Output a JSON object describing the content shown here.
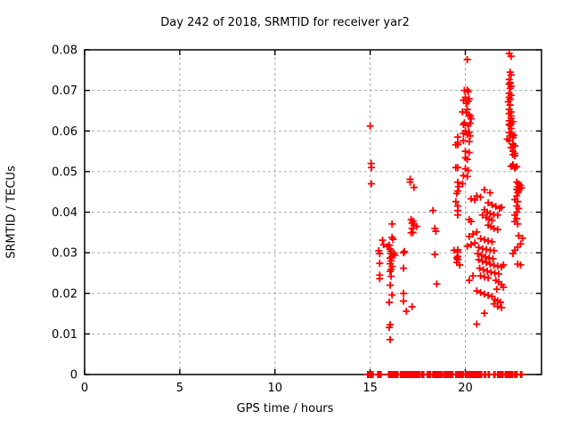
{
  "chart_data": {
    "type": "scatter",
    "title": "Day 242 of 2018, SRMTID for receiver yar2",
    "xlabel": "GPS time / hours",
    "ylabel": "SRMTID / TECUs",
    "xlim": [
      0,
      24
    ],
    "ylim": [
      0,
      0.08
    ],
    "x_ticks": [
      0,
      5,
      10,
      15,
      20
    ],
    "x_tick_labels": [
      "0",
      "5",
      "10",
      "15",
      "20"
    ],
    "y_ticks": [
      0,
      0.01,
      0.02,
      0.03,
      0.04,
      0.05,
      0.06,
      0.07,
      0.08
    ],
    "y_tick_labels": [
      "0",
      "0.01",
      "0.02",
      "0.03",
      "0.04",
      "0.05",
      "0.06",
      "0.07",
      "0.08"
    ],
    "grid": true,
    "legend": "none",
    "marker": "plus",
    "marker_color": "#ff0000",
    "grid_color": "#a8a8a8",
    "frame_color": "#000000",
    "points": [
      [
        15.0,
        0.0612
      ],
      [
        15.05,
        0.052
      ],
      [
        15.07,
        0.051
      ],
      [
        15.06,
        0.047
      ],
      [
        15.45,
        0.0305
      ],
      [
        15.5,
        0.0298
      ],
      [
        15.65,
        0.0331
      ],
      [
        15.7,
        0.032
      ],
      [
        15.9,
        0.0315
      ],
      [
        15.5,
        0.0274
      ],
      [
        15.5,
        0.0245
      ],
      [
        15.5,
        0.0236
      ],
      [
        16.15,
        0.0371
      ],
      [
        16.15,
        0.0338
      ],
      [
        16.2,
        0.0333
      ],
      [
        16.0,
        0.0319
      ],
      [
        16.05,
        0.0309
      ],
      [
        16.1,
        0.0304
      ],
      [
        16.25,
        0.0299
      ],
      [
        16.1,
        0.0298
      ],
      [
        16.15,
        0.0291
      ],
      [
        16.3,
        0.0294
      ],
      [
        16.05,
        0.0287
      ],
      [
        16.1,
        0.028
      ],
      [
        16.05,
        0.0273
      ],
      [
        16.15,
        0.0266
      ],
      [
        16.1,
        0.0259
      ],
      [
        16.05,
        0.0254
      ],
      [
        16.1,
        0.0242
      ],
      [
        16.05,
        0.022
      ],
      [
        16.15,
        0.0196
      ],
      [
        16.0,
        0.0178
      ],
      [
        16.05,
        0.0123
      ],
      [
        16.0,
        0.0116
      ],
      [
        16.05,
        0.0086
      ],
      [
        16.75,
        0.03
      ],
      [
        16.8,
        0.0303
      ],
      [
        16.75,
        0.0262
      ],
      [
        16.75,
        0.02
      ],
      [
        16.75,
        0.0181
      ],
      [
        16.9,
        0.0156
      ],
      [
        17.2,
        0.0167
      ],
      [
        17.1,
        0.0481
      ],
      [
        17.1,
        0.0474
      ],
      [
        17.3,
        0.0461
      ],
      [
        17.15,
        0.0382
      ],
      [
        17.25,
        0.0378
      ],
      [
        17.2,
        0.0373
      ],
      [
        17.3,
        0.0368
      ],
      [
        17.2,
        0.036
      ],
      [
        17.25,
        0.035
      ],
      [
        17.15,
        0.0349
      ],
      [
        17.45,
        0.0365
      ],
      [
        18.3,
        0.0404
      ],
      [
        18.4,
        0.036
      ],
      [
        18.45,
        0.0353
      ],
      [
        18.4,
        0.0296
      ],
      [
        18.5,
        0.0223
      ],
      [
        19.6,
        0.0585
      ],
      [
        19.6,
        0.0566
      ],
      [
        19.5,
        0.0566
      ],
      [
        19.6,
        0.051
      ],
      [
        19.5,
        0.051
      ],
      [
        19.6,
        0.0474
      ],
      [
        19.65,
        0.0463
      ],
      [
        19.6,
        0.0452
      ],
      [
        19.85,
        0.047
      ],
      [
        19.55,
        0.0446
      ],
      [
        19.6,
        0.0415
      ],
      [
        19.5,
        0.0426
      ],
      [
        19.6,
        0.0404
      ],
      [
        19.6,
        0.0393
      ],
      [
        19.4,
        0.0306
      ],
      [
        19.6,
        0.0307
      ],
      [
        19.6,
        0.0302
      ],
      [
        19.6,
        0.0291
      ],
      [
        19.55,
        0.0287
      ],
      [
        19.7,
        0.027
      ],
      [
        19.55,
        0.0276
      ],
      [
        19.6,
        0.0283
      ],
      [
        20.1,
        0.0776
      ],
      [
        20.1,
        0.0701
      ],
      [
        19.95,
        0.07
      ],
      [
        20.15,
        0.0697
      ],
      [
        20.0,
        0.0683
      ],
      [
        20.2,
        0.0679
      ],
      [
        20.05,
        0.0668
      ],
      [
        19.9,
        0.0676
      ],
      [
        20.15,
        0.0673
      ],
      [
        20.1,
        0.0653
      ],
      [
        20.05,
        0.0645
      ],
      [
        20.2,
        0.064
      ],
      [
        20.3,
        0.063
      ],
      [
        19.85,
        0.0647
      ],
      [
        20.25,
        0.0636
      ],
      [
        19.95,
        0.062
      ],
      [
        20.25,
        0.0619
      ],
      [
        19.9,
        0.0616
      ],
      [
        20.15,
        0.0613
      ],
      [
        20.0,
        0.06
      ],
      [
        20.2,
        0.0597
      ],
      [
        19.9,
        0.0594
      ],
      [
        20.1,
        0.0591
      ],
      [
        20.25,
        0.0588
      ],
      [
        19.6,
        0.0571
      ],
      [
        19.9,
        0.0576
      ],
      [
        20.2,
        0.0574
      ],
      [
        20.0,
        0.055
      ],
      [
        20.2,
        0.0547
      ],
      [
        20.0,
        0.0534
      ],
      [
        20.1,
        0.053
      ],
      [
        20.0,
        0.0507
      ],
      [
        20.15,
        0.0503
      ],
      [
        19.9,
        0.049
      ],
      [
        20.1,
        0.0488
      ],
      [
        20.3,
        0.0433
      ],
      [
        20.5,
        0.043
      ],
      [
        20.6,
        0.044
      ],
      [
        20.8,
        0.0437
      ],
      [
        20.2,
        0.0382
      ],
      [
        20.3,
        0.0377
      ],
      [
        20.2,
        0.034
      ],
      [
        20.4,
        0.0346
      ],
      [
        20.6,
        0.0351
      ],
      [
        20.1,
        0.0316
      ],
      [
        20.3,
        0.032
      ],
      [
        20.5,
        0.0324
      ],
      [
        20.4,
        0.0243
      ],
      [
        20.2,
        0.0232
      ],
      [
        20.6,
        0.0124
      ],
      [
        21.0,
        0.0455
      ],
      [
        21.3,
        0.0448
      ],
      [
        21.2,
        0.0423
      ],
      [
        21.4,
        0.0418
      ],
      [
        21.6,
        0.0414
      ],
      [
        21.8,
        0.041
      ],
      [
        21.9,
        0.0412
      ],
      [
        21.0,
        0.0406
      ],
      [
        21.15,
        0.04
      ],
      [
        21.3,
        0.0397
      ],
      [
        21.5,
        0.0394
      ],
      [
        21.7,
        0.0393
      ],
      [
        20.9,
        0.0393
      ],
      [
        21.1,
        0.0387
      ],
      [
        21.25,
        0.0383
      ],
      [
        21.4,
        0.038
      ],
      [
        21.2,
        0.0368
      ],
      [
        21.35,
        0.0364
      ],
      [
        21.5,
        0.036
      ],
      [
        21.7,
        0.0357
      ],
      [
        20.8,
        0.0335
      ],
      [
        21.0,
        0.0332
      ],
      [
        21.2,
        0.0329
      ],
      [
        21.4,
        0.0327
      ],
      [
        20.7,
        0.0313
      ],
      [
        20.9,
        0.031
      ],
      [
        21.1,
        0.0308
      ],
      [
        21.3,
        0.0306
      ],
      [
        21.5,
        0.0305
      ],
      [
        20.65,
        0.0298
      ],
      [
        20.85,
        0.0294
      ],
      [
        21.05,
        0.029
      ],
      [
        21.25,
        0.0287
      ],
      [
        21.45,
        0.0285
      ],
      [
        20.7,
        0.0283
      ],
      [
        20.9,
        0.0279
      ],
      [
        21.1,
        0.0276
      ],
      [
        21.3,
        0.0272
      ],
      [
        21.5,
        0.0269
      ],
      [
        21.7,
        0.0267
      ],
      [
        21.9,
        0.0265
      ],
      [
        22.0,
        0.027
      ],
      [
        20.75,
        0.0262
      ],
      [
        20.95,
        0.0258
      ],
      [
        21.15,
        0.0255
      ],
      [
        21.35,
        0.0252
      ],
      [
        21.55,
        0.025
      ],
      [
        21.75,
        0.0248
      ],
      [
        20.8,
        0.0243
      ],
      [
        21.0,
        0.024
      ],
      [
        21.2,
        0.0238
      ],
      [
        21.6,
        0.0232
      ],
      [
        21.75,
        0.0228
      ],
      [
        21.9,
        0.0222
      ],
      [
        22.0,
        0.0215
      ],
      [
        21.65,
        0.021
      ],
      [
        20.6,
        0.0206
      ],
      [
        20.8,
        0.0202
      ],
      [
        21.0,
        0.0198
      ],
      [
        21.2,
        0.0195
      ],
      [
        21.4,
        0.0192
      ],
      [
        21.55,
        0.0185
      ],
      [
        21.7,
        0.0181
      ],
      [
        21.85,
        0.0178
      ],
      [
        21.5,
        0.0174
      ],
      [
        21.7,
        0.0168
      ],
      [
        21.9,
        0.0165
      ],
      [
        21.0,
        0.0151
      ],
      [
        22.3,
        0.0791
      ],
      [
        22.4,
        0.0784
      ],
      [
        22.35,
        0.0745
      ],
      [
        22.4,
        0.0738
      ],
      [
        22.3,
        0.0727
      ],
      [
        22.35,
        0.0719
      ],
      [
        22.3,
        0.0715
      ],
      [
        22.4,
        0.071
      ],
      [
        22.35,
        0.0705
      ],
      [
        22.3,
        0.0693
      ],
      [
        22.4,
        0.0688
      ],
      [
        22.3,
        0.0683
      ],
      [
        22.35,
        0.0678
      ],
      [
        22.25,
        0.0672
      ],
      [
        22.35,
        0.0664
      ],
      [
        22.3,
        0.0653
      ],
      [
        22.4,
        0.0647
      ],
      [
        22.3,
        0.0643
      ],
      [
        22.4,
        0.0637
      ],
      [
        22.4,
        0.0631
      ],
      [
        22.5,
        0.0623
      ],
      [
        22.3,
        0.0625
      ],
      [
        22.4,
        0.0618
      ],
      [
        22.35,
        0.0613
      ],
      [
        22.3,
        0.0616
      ],
      [
        22.4,
        0.0606
      ],
      [
        22.3,
        0.0596
      ],
      [
        22.45,
        0.0592
      ],
      [
        22.55,
        0.0589
      ],
      [
        22.35,
        0.0588
      ],
      [
        22.5,
        0.0584
      ],
      [
        22.2,
        0.058
      ],
      [
        22.3,
        0.0576
      ],
      [
        22.5,
        0.0568
      ],
      [
        22.6,
        0.0563
      ],
      [
        22.5,
        0.0566
      ],
      [
        22.4,
        0.0559
      ],
      [
        22.5,
        0.055
      ],
      [
        22.6,
        0.0545
      ],
      [
        22.5,
        0.0542
      ],
      [
        22.6,
        0.0539
      ],
      [
        22.5,
        0.0517
      ],
      [
        22.5,
        0.0514
      ],
      [
        22.7,
        0.0512
      ],
      [
        22.6,
        0.0509
      ],
      [
        22.4,
        0.0513
      ],
      [
        22.6,
        0.051
      ],
      [
        22.7,
        0.0474
      ],
      [
        22.8,
        0.047
      ],
      [
        22.9,
        0.0466
      ],
      [
        22.75,
        0.0462
      ],
      [
        22.85,
        0.0458
      ],
      [
        22.7,
        0.0456
      ],
      [
        22.95,
        0.046
      ],
      [
        22.8,
        0.0452
      ],
      [
        22.75,
        0.0448
      ],
      [
        22.7,
        0.044
      ],
      [
        22.6,
        0.0431
      ],
      [
        22.75,
        0.0426
      ],
      [
        22.7,
        0.0415
      ],
      [
        22.8,
        0.0409
      ],
      [
        22.7,
        0.04
      ],
      [
        22.6,
        0.0393
      ],
      [
        22.7,
        0.0384
      ],
      [
        22.6,
        0.0377
      ],
      [
        22.75,
        0.0371
      ],
      [
        22.8,
        0.0342
      ],
      [
        23.0,
        0.0336
      ],
      [
        22.9,
        0.0322
      ],
      [
        22.75,
        0.0314
      ],
      [
        22.6,
        0.0306
      ],
      [
        22.5,
        0.0298
      ],
      [
        22.75,
        0.0272
      ],
      [
        22.9,
        0.027
      ]
    ],
    "baseline_value": 0,
    "baseline_segments": [
      [
        14.87,
        15.19
      ],
      [
        15.4,
        15.6
      ],
      [
        15.97,
        16.36
      ],
      [
        16.4,
        16.5
      ],
      [
        16.6,
        17.63
      ],
      [
        17.7,
        17.84
      ],
      [
        18.0,
        18.2
      ],
      [
        18.3,
        18.8
      ],
      [
        18.9,
        19.35
      ],
      [
        19.5,
        19.9
      ],
      [
        20.0,
        20.2
      ],
      [
        20.25,
        20.9
      ],
      [
        21.0,
        21.1
      ],
      [
        21.2,
        21.3
      ],
      [
        21.5,
        21.6
      ],
      [
        21.7,
        22.0
      ],
      [
        22.1,
        22.5
      ],
      [
        22.6,
        22.75
      ],
      [
        22.9,
        23.0
      ]
    ]
  }
}
